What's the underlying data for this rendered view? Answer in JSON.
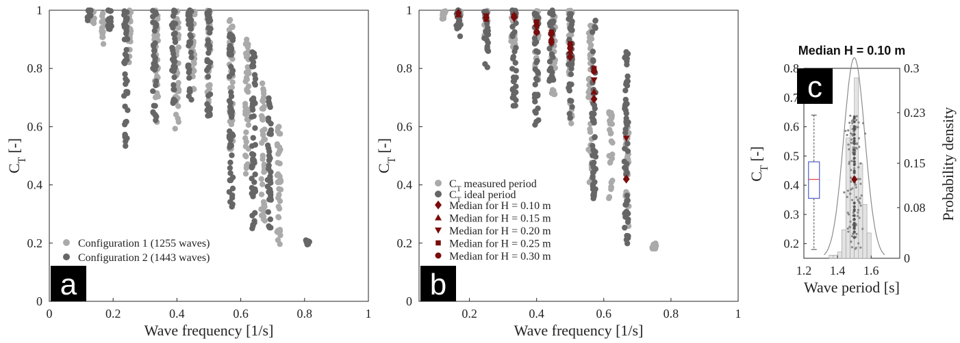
{
  "colors": {
    "config1": "#aaaaaa",
    "config2": "#666666",
    "median_marker": "#7a0c0c",
    "histogram": "#e3e3e3",
    "box": "#4a5fc7",
    "box_median": "#e05050",
    "density_curve": "#8a8a8a"
  },
  "chart_data": [
    {
      "id": "a",
      "panel_label": "a",
      "type": "scatter",
      "xlabel": "Wave frequency [1/s]",
      "ylabel_main": "C",
      "ylabel_sub": "T",
      "ylabel_unit": " [-]",
      "xlim": [
        0,
        1
      ],
      "ylim": [
        0,
        1
      ],
      "xticks": [
        "0",
        "0.2",
        "0.4",
        "0.6",
        "0.8",
        "1"
      ],
      "yticks": [
        "0",
        "0.2",
        "0.4",
        "0.6",
        "0.8",
        "1"
      ],
      "legend": "bottom-left",
      "series": [
        {
          "name": "Configuration 1 (1255 waves)",
          "clusters": [
            {
              "x": 0.135,
              "ymin": 0.95,
              "ymax": 1.0
            },
            {
              "x": 0.17,
              "ymin": 0.88,
              "ymax": 1.0
            },
            {
              "x": 0.25,
              "ymin": 0.82,
              "ymax": 1.0
            },
            {
              "x": 0.335,
              "ymin": 0.6,
              "ymax": 1.0
            },
            {
              "x": 0.4,
              "ymin": 0.58,
              "ymax": 1.0
            },
            {
              "x": 0.45,
              "ymin": 0.72,
              "ymax": 1.0
            },
            {
              "x": 0.5,
              "ymin": 0.65,
              "ymax": 1.0
            },
            {
              "x": 0.57,
              "ymin": 0.5,
              "ymax": 0.98
            },
            {
              "x": 0.62,
              "ymin": 0.4,
              "ymax": 0.9
            },
            {
              "x": 0.67,
              "ymin": 0.27,
              "ymax": 0.75
            },
            {
              "x": 0.72,
              "ymin": 0.18,
              "ymax": 0.6
            }
          ]
        },
        {
          "name": "Configuration 2 (1443 waves)",
          "clusters": [
            {
              "x": 0.125,
              "ymin": 0.96,
              "ymax": 1.0
            },
            {
              "x": 0.19,
              "ymin": 0.92,
              "ymax": 1.0
            },
            {
              "x": 0.24,
              "ymin": 0.52,
              "ymax": 1.0
            },
            {
              "x": 0.33,
              "ymin": 0.62,
              "ymax": 1.0
            },
            {
              "x": 0.39,
              "ymin": 0.65,
              "ymax": 1.0
            },
            {
              "x": 0.44,
              "ymin": 0.68,
              "ymax": 1.0
            },
            {
              "x": 0.5,
              "ymin": 0.62,
              "ymax": 1.0
            },
            {
              "x": 0.57,
              "ymin": 0.28,
              "ymax": 0.92
            },
            {
              "x": 0.64,
              "ymin": 0.25,
              "ymax": 0.88
            },
            {
              "x": 0.69,
              "ymin": 0.25,
              "ymax": 0.7
            },
            {
              "x": 0.81,
              "ymin": 0.19,
              "ymax": 0.21
            }
          ]
        }
      ]
    },
    {
      "id": "b",
      "panel_label": "b",
      "type": "scatter",
      "xlabel": "Wave frequency [1/s]",
      "ylabel_main": "C",
      "ylabel_sub": "T",
      "ylabel_unit": " [-]",
      "xlim": [
        0.05,
        1
      ],
      "ylim": [
        0,
        1
      ],
      "xticks": [
        "0.2",
        "0.4",
        "0.6",
        "0.8",
        "1"
      ],
      "yticks": [
        "0",
        "0.2",
        "0.4",
        "0.6",
        "0.8",
        "1"
      ],
      "legend": "bottom-left",
      "series": [
        {
          "name_main": "C",
          "name_sub": "T",
          "name_rest": " measured period",
          "clusters": [
            {
              "x": 0.125,
              "ymin": 0.97,
              "ymax": 1.0
            },
            {
              "x": 0.17,
              "ymin": 0.95,
              "ymax": 1.0
            },
            {
              "x": 0.25,
              "ymin": 0.9,
              "ymax": 1.0
            },
            {
              "x": 0.33,
              "ymin": 0.85,
              "ymax": 1.0
            },
            {
              "x": 0.4,
              "ymin": 0.75,
              "ymax": 1.0
            },
            {
              "x": 0.45,
              "ymin": 0.7,
              "ymax": 1.0
            },
            {
              "x": 0.5,
              "ymin": 0.6,
              "ymax": 1.0
            },
            {
              "x": 0.56,
              "ymin": 0.4,
              "ymax": 0.95
            },
            {
              "x": 0.62,
              "ymin": 0.35,
              "ymax": 0.65
            },
            {
              "x": 0.67,
              "ymin": 0.25,
              "ymax": 0.6
            },
            {
              "x": 0.75,
              "ymin": 0.18,
              "ymax": 0.2
            }
          ]
        },
        {
          "name_main": "C",
          "name_sub": "T",
          "name_rest": " ideal period",
          "clusters": [
            {
              "x": 0.167,
              "ymin": 0.88,
              "ymax": 1.0
            },
            {
              "x": 0.25,
              "ymin": 0.8,
              "ymax": 1.0
            },
            {
              "x": 0.333,
              "ymin": 0.65,
              "ymax": 1.0
            },
            {
              "x": 0.4,
              "ymin": 0.6,
              "ymax": 1.0
            },
            {
              "x": 0.444,
              "ymin": 0.75,
              "ymax": 1.0
            },
            {
              "x": 0.5,
              "ymin": 0.6,
              "ymax": 1.0
            },
            {
              "x": 0.571,
              "ymin": 0.35,
              "ymax": 0.97
            },
            {
              "x": 0.667,
              "ymin": 0.18,
              "ymax": 0.86
            }
          ]
        }
      ],
      "medians": [
        {
          "name": "Median for H = 0.10 m",
          "marker": "diamond",
          "points": [
            [
              0.167,
              0.99
            ],
            [
              0.25,
              0.975
            ],
            [
              0.333,
              0.975
            ],
            [
              0.4,
              0.925
            ],
            [
              0.444,
              0.89
            ],
            [
              0.5,
              0.84
            ],
            [
              0.571,
              0.695
            ],
            [
              0.667,
              0.42
            ]
          ]
        },
        {
          "name": "Median for H = 0.15 m",
          "marker": "triangle-up",
          "points": [
            [
              0.167,
              0.985
            ],
            [
              0.25,
              0.97
            ],
            [
              0.333,
              0.985
            ],
            [
              0.4,
              0.955
            ],
            [
              0.444,
              0.905
            ],
            [
              0.5,
              0.86
            ],
            [
              0.571,
              0.72
            ]
          ]
        },
        {
          "name": "Median for H = 0.20 m",
          "marker": "triangle-down",
          "points": [
            [
              0.25,
              0.98
            ],
            [
              0.333,
              0.97
            ],
            [
              0.4,
              0.94
            ],
            [
              0.444,
              0.915
            ],
            [
              0.5,
              0.875
            ],
            [
              0.571,
              0.76
            ],
            [
              0.667,
              0.56
            ]
          ]
        },
        {
          "name": "Median for H = 0.25 m",
          "marker": "square",
          "points": [
            [
              0.333,
              0.98
            ],
            [
              0.4,
              0.96
            ],
            [
              0.444,
              0.925
            ],
            [
              0.5,
              0.885
            ],
            [
              0.571,
              0.8
            ]
          ]
        },
        {
          "name": "Median for H = 0.30 m",
          "marker": "circle",
          "points": [
            [
              0.4,
              0.925
            ],
            [
              0.444,
              0.92
            ],
            [
              0.5,
              0.87
            ],
            [
              0.571,
              0.79
            ]
          ]
        }
      ]
    },
    {
      "id": "c",
      "panel_label": "c",
      "type": "histogram+box+scatter",
      "title": "Median H = 0.10 m",
      "xlabel": "Wave period [s]",
      "ylabel_main": "C",
      "ylabel_sub": "T",
      "ylabel_unit": " [-]",
      "ylabel_right": "Probability density",
      "xlim": [
        1.2,
        1.77
      ],
      "ylim_left": [
        0.15,
        0.8
      ],
      "ylim_right": [
        0,
        0.3
      ],
      "xticks": [
        "1.2",
        "1.4",
        "1.6"
      ],
      "yticks_left": [
        "0.2",
        "0.3",
        "0.4",
        "0.5",
        "0.6",
        "0.7",
        "0.8"
      ],
      "yticks_right": [
        "0",
        "0.08",
        "0.15",
        "0.23",
        "0.3"
      ],
      "histogram": {
        "bin_width": 0.025,
        "bins": [
          {
            "x0": 1.35,
            "density": 0.005
          },
          {
            "x0": 1.375,
            "density": 0.005
          },
          {
            "x0": 1.4,
            "density": 0.01
          },
          {
            "x0": 1.425,
            "density": 0.045
          },
          {
            "x0": 1.45,
            "density": 0.19
          },
          {
            "x0": 1.475,
            "density": 0.21
          },
          {
            "x0": 1.5,
            "density": 0.285
          },
          {
            "x0": 1.525,
            "density": 0.15
          },
          {
            "x0": 1.55,
            "density": 0.085
          },
          {
            "x0": 1.575,
            "density": 0.04
          }
        ]
      },
      "density_curve": {
        "mean": 1.5,
        "sd": 0.063
      },
      "boxplot": {
        "x": 1.26,
        "min": 0.18,
        "q1": 0.355,
        "median": 0.42,
        "q3": 0.48,
        "max": 0.64
      },
      "scatter": {
        "x_center": 1.5,
        "x_spread": 0.08,
        "ymin": 0.18,
        "ymax": 0.64
      },
      "median_point": {
        "x": 1.5,
        "y": 0.42
      }
    }
  ]
}
